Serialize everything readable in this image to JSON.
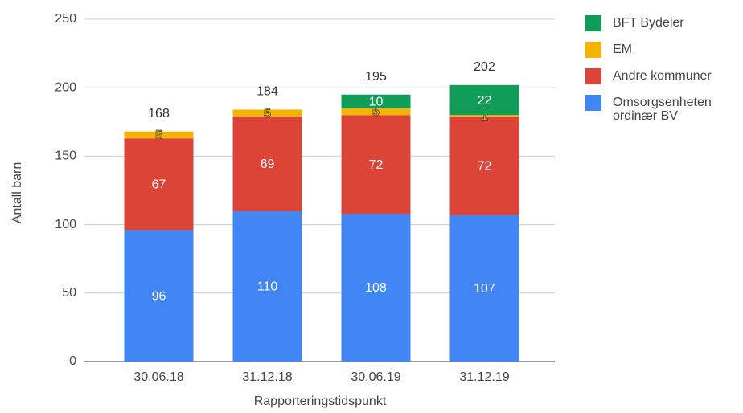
{
  "chart_data": {
    "type": "stacked-bar",
    "categories": [
      "30.06.18",
      "31.12.18",
      "30.06.19",
      "31.12.19"
    ],
    "series": [
      {
        "name": "Omsorgsenheten ordinær BV",
        "color": "#4285f4",
        "values": [
          96,
          110,
          108,
          107
        ]
      },
      {
        "name": "Andre kommuner",
        "color": "#db4437",
        "values": [
          67,
          69,
          72,
          72
        ]
      },
      {
        "name": "EM",
        "color": "#f4b400",
        "values": [
          5,
          5,
          5,
          1
        ]
      },
      {
        "name": "BFT Bydeler",
        "color": "#0f9d58",
        "values": [
          null,
          null,
          10,
          22
        ]
      }
    ],
    "totals": [
      168,
      184,
      195,
      202
    ],
    "xlabel": "Rapporteringstidspunkt",
    "ylabel": "Antall barn",
    "ylim": [
      0,
      250
    ],
    "yticks": [
      0,
      50,
      100,
      150,
      200,
      250
    ],
    "grid": true,
    "legend": "right"
  }
}
